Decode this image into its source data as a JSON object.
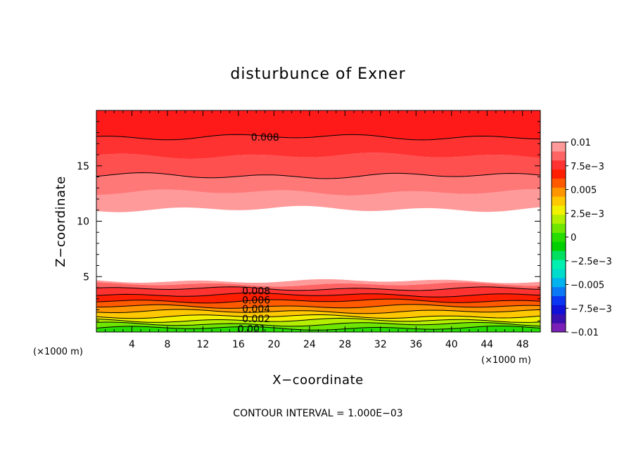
{
  "chart_data": {
    "type": "heatmap",
    "title": "disturbunce of Exner",
    "xlabel": "X−coordinate",
    "ylabel": "Z−coordinate",
    "x_unit": "(×1000 m)",
    "y_unit": "(×1000 m)",
    "xlim": [
      0,
      50
    ],
    "ylim": [
      0,
      20
    ],
    "x_ticks": [
      4,
      8,
      12,
      16,
      20,
      24,
      28,
      32,
      36,
      40,
      44,
      48
    ],
    "y_ticks": [
      5,
      10,
      15
    ],
    "colorbar": {
      "levels": [
        -0.01,
        -0.009,
        -0.008,
        -0.007,
        -0.006,
        -0.005,
        -0.004,
        -0.003,
        -0.002,
        -0.001,
        0,
        0.001,
        0.002,
        0.003,
        0.004,
        0.005,
        0.006,
        0.007,
        0.008,
        0.009,
        0.01
      ],
      "colors": [
        "#7a1fb8",
        "#3a10b0",
        "#1010d8",
        "#0a35f2",
        "#0b78f5",
        "#00b2ee",
        "#00dccc",
        "#00f0b0",
        "#00e060",
        "#00d000",
        "#26dc00",
        "#6ee600",
        "#b4ee00",
        "#f2f200",
        "#ffc800",
        "#ff9600",
        "#ff5a00",
        "#ff1e00",
        "#ff3232",
        "#ff6464",
        "#ff9a9a"
      ],
      "tick_labels": [
        "0.01",
        "7.5e−3",
        "0.005",
        "2.5e−3",
        "0",
        "−2.5e−3",
        "−0.005",
        "−7.5e−3",
        "−0.01"
      ],
      "tick_values": [
        0.01,
        0.0075,
        0.005,
        0.0025,
        0,
        -0.0025,
        -0.005,
        -0.0075,
        -0.01
      ]
    },
    "bands": [
      {
        "z_bottom": 0.0,
        "z_top": 0.35,
        "color": "#26dc00"
      },
      {
        "z_bottom": 0.35,
        "z_top": 0.7,
        "color": "#6ee600"
      },
      {
        "z_bottom": 0.7,
        "z_top": 1.05,
        "color": "#b4ee00"
      },
      {
        "z_bottom": 1.05,
        "z_top": 1.4,
        "color": "#f2f200"
      },
      {
        "z_bottom": 1.4,
        "z_top": 1.85,
        "color": "#ffc800"
      },
      {
        "z_bottom": 1.85,
        "z_top": 2.3,
        "color": "#ff9600"
      },
      {
        "z_bottom": 2.3,
        "z_top": 2.8,
        "color": "#ff5a00"
      },
      {
        "z_bottom": 2.8,
        "z_top": 3.35,
        "color": "#ff1e00"
      },
      {
        "z_bottom": 3.35,
        "z_top": 3.9,
        "color": "#ff3232"
      },
      {
        "z_bottom": 3.9,
        "z_top": 4.3,
        "color": "#ff6464"
      },
      {
        "z_bottom": 4.3,
        "z_top": 4.6,
        "color": "#ff9a9a"
      },
      {
        "z_bottom": 4.6,
        "z_top": 11.1,
        "color": "#ffffff"
      },
      {
        "z_bottom": 11.1,
        "z_top": 12.6,
        "color": "#ff9a9a"
      },
      {
        "z_bottom": 12.6,
        "z_top": 14.1,
        "color": "#ff7878"
      },
      {
        "z_bottom": 14.1,
        "z_top": 15.9,
        "color": "#ff5050"
      },
      {
        "z_bottom": 15.9,
        "z_top": 17.6,
        "color": "#ff3232"
      },
      {
        "z_bottom": 17.6,
        "z_top": 20.0,
        "color": "#ff1a1a"
      }
    ],
    "contours_z": [
      0.35,
      0.7,
      1.05,
      1.4,
      1.85,
      2.3,
      2.8,
      3.35,
      3.9,
      14.1,
      17.6
    ],
    "contour_labels": [
      {
        "text": "0.008",
        "x": 19,
        "z": 17.6
      },
      {
        "text": "0.008",
        "x": 18,
        "z": 3.7
      },
      {
        "text": "0.006",
        "x": 18,
        "z": 2.9
      },
      {
        "text": "0.004",
        "x": 18,
        "z": 2.1
      },
      {
        "text": "0.002",
        "x": 18,
        "z": 1.2
      },
      {
        "text": "0.001",
        "x": 17.5,
        "z": 0.3
      }
    ],
    "footer": "CONTOUR INTERVAL = 1.000E−03"
  }
}
